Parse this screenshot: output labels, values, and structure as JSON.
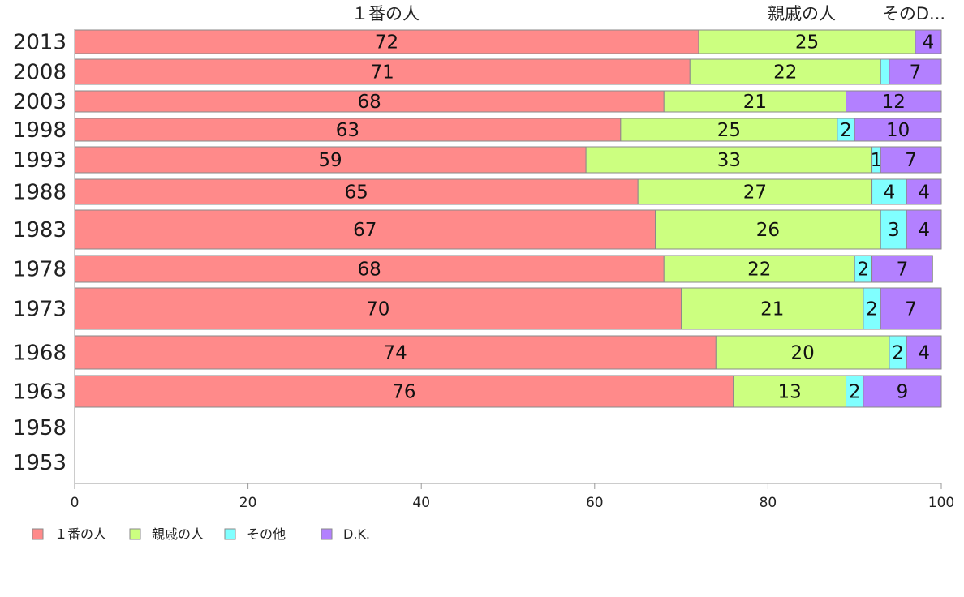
{
  "chart_data": {
    "type": "bar",
    "orientation": "horizontal",
    "stacked": true,
    "title": "",
    "xlabel": "",
    "ylabel": "",
    "xlim": [
      0,
      100
    ],
    "x_ticks": [
      "0",
      "20",
      "40",
      "60",
      "80",
      "100"
    ],
    "categories": [
      "2013",
      "2008",
      "2003",
      "1998",
      "1993",
      "1988",
      "1983",
      "1978",
      "1973",
      "1968",
      "1963",
      "1958",
      "1953"
    ],
    "series": [
      {
        "name": "１番の人",
        "header": "１番の人",
        "color": "#ff8a8a",
        "values": [
          72,
          71,
          68,
          63,
          59,
          65,
          67,
          68,
          70,
          74,
          76,
          null,
          null
        ]
      },
      {
        "name": "親戚の人",
        "header": "親戚の人",
        "color": "#ccff80",
        "values": [
          25,
          22,
          21,
          25,
          33,
          27,
          26,
          22,
          21,
          20,
          13,
          null,
          null
        ]
      },
      {
        "name": "その他",
        "header": "そのD...",
        "color": "#80ffff",
        "values": [
          null,
          1,
          null,
          2,
          1,
          4,
          3,
          2,
          2,
          2,
          2,
          null,
          null
        ]
      },
      {
        "name": "D.K.",
        "header": "",
        "color": "#b380ff",
        "values": [
          4,
          7,
          12,
          10,
          7,
          4,
          4,
          7,
          7,
          4,
          9,
          null,
          null
        ]
      }
    ],
    "data_labels": [
      [
        "72",
        "25",
        "",
        "4"
      ],
      [
        "71",
        "22",
        "",
        "7"
      ],
      [
        "68",
        "21",
        "",
        "12"
      ],
      [
        "63",
        "25",
        "2",
        "10"
      ],
      [
        "59",
        "33",
        "1",
        "7"
      ],
      [
        "65",
        "27",
        "4",
        "4"
      ],
      [
        "67",
        "26",
        "3",
        "4"
      ],
      [
        "68",
        "22",
        "2",
        "7"
      ],
      [
        "70",
        "21",
        "2",
        "7"
      ],
      [
        "74",
        "20",
        "2",
        "4"
      ],
      [
        "76",
        "13",
        "2",
        "9"
      ],
      [
        "",
        "",
        "",
        ""
      ],
      [
        "",
        "",
        "",
        ""
      ]
    ],
    "legend": {
      "position": "bottom-left"
    },
    "grid": false
  }
}
